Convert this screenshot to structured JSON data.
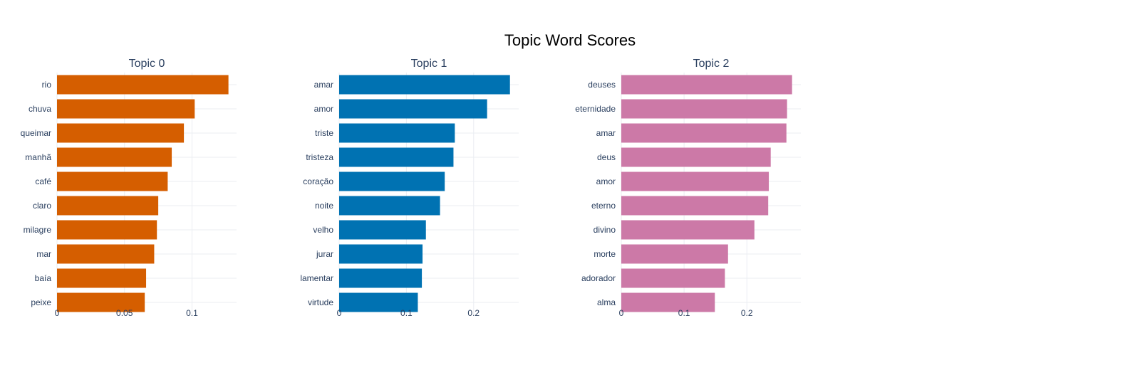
{
  "chart_data": {
    "type": "bar",
    "orientation": "horizontal",
    "title": "Topic Word Scores",
    "subplots": [
      {
        "title": "Topic 0",
        "color": "#D55E00",
        "categories": [
          "rio",
          "chuva",
          "queimar",
          "manhã",
          "café",
          "claro",
          "milagre",
          "mar",
          "baía",
          "peixe"
        ],
        "values": [
          0.127,
          0.102,
          0.094,
          0.085,
          0.082,
          0.075,
          0.074,
          0.072,
          0.066,
          0.065
        ],
        "xlim": [
          0,
          0.133
        ],
        "xticks": [
          0,
          0.05,
          0.1
        ],
        "xtick_labels": [
          "0",
          "0.05",
          "0.1"
        ]
      },
      {
        "title": "Topic 1",
        "color": "#0072B2",
        "categories": [
          "amar",
          "amor",
          "triste",
          "tristeza",
          "coração",
          "noite",
          "velho",
          "jurar",
          "lamentar",
          "virtude"
        ],
        "values": [
          0.254,
          0.22,
          0.172,
          0.17,
          0.157,
          0.15,
          0.129,
          0.124,
          0.123,
          0.117
        ],
        "xlim": [
          0,
          0.267
        ],
        "xticks": [
          0,
          0.1,
          0.2
        ],
        "xtick_labels": [
          "0",
          "0.1",
          "0.2"
        ]
      },
      {
        "title": "Topic 2",
        "color": "#CC79A7",
        "categories": [
          "deuses",
          "eternidade",
          "amar",
          "deus",
          "amor",
          "eterno",
          "divino",
          "morte",
          "adorador",
          "alma"
        ],
        "values": [
          0.272,
          0.264,
          0.263,
          0.238,
          0.235,
          0.234,
          0.212,
          0.17,
          0.165,
          0.149
        ],
        "xlim": [
          0,
          0.286
        ],
        "xticks": [
          0,
          0.1,
          0.2
        ],
        "xtick_labels": [
          "0",
          "0.1",
          "0.2"
        ]
      }
    ],
    "grid": true,
    "legend": "none"
  }
}
